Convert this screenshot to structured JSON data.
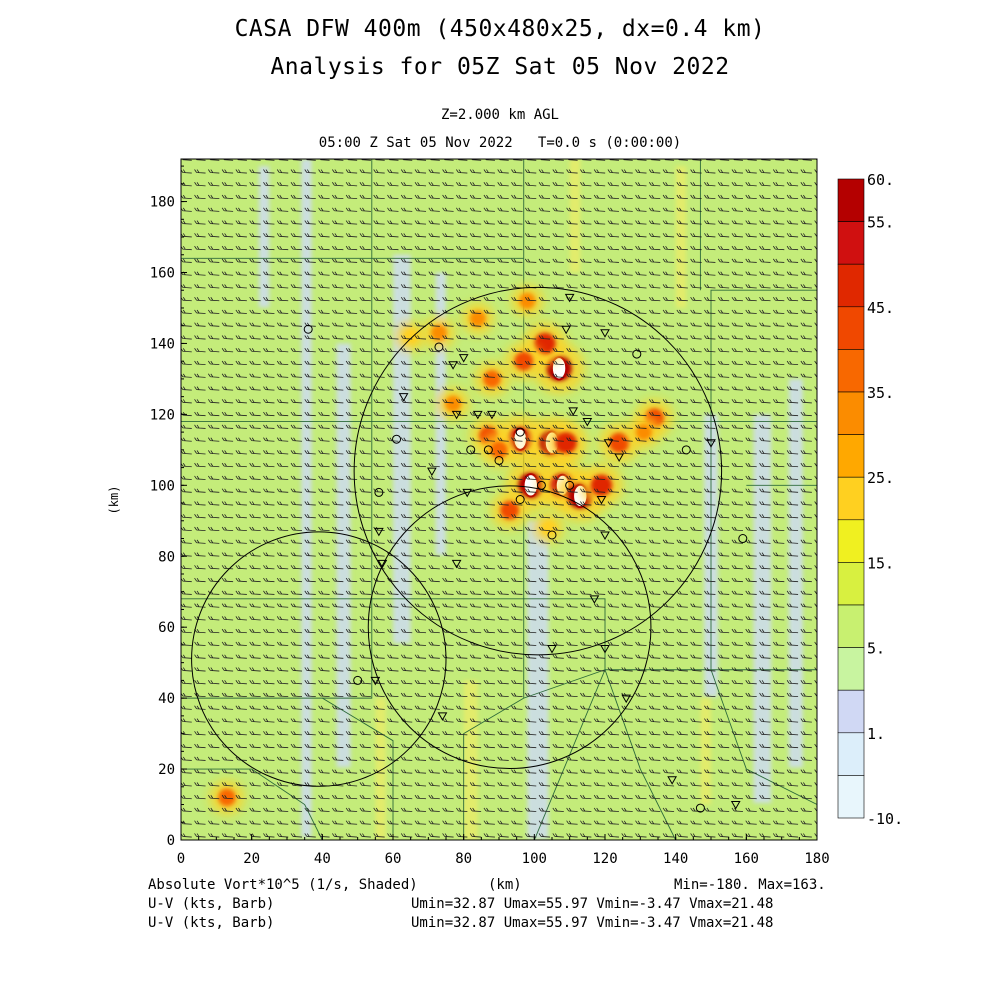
{
  "header": {
    "title_line1": "CASA DFW 400m (450x480x25, dx=0.4 km)",
    "title_line2": "Analysis for 05Z Sat 05 Nov 2022",
    "level": "Z=2.000 km AGL",
    "time": "05:00 Z Sat 05 Nov 2022   T=0.0 s (0:00:00)"
  },
  "footer": {
    "field1": "Absolute Vort*10^5 (1/s, Shaded)",
    "xunit": "(km)",
    "minmax": "Min=-180. Max=163.",
    "field2": "U-V (kts, Barb)",
    "stats2": "Umin=32.87 Umax=55.97 Vmin=-3.47 Vmax=21.48",
    "field3": "U-V (kts, Barb)",
    "stats3": "Umin=32.87 Umax=55.97 Vmin=-3.47 Vmax=21.48"
  },
  "chart_data": {
    "type": "heatmap",
    "xlabel": "(km)",
    "ylabel": "(km)",
    "xlim": [
      0,
      180
    ],
    "ylim": [
      0,
      192
    ],
    "xticks": [
      "0",
      "20",
      "40",
      "60",
      "80",
      "100",
      "120",
      "140",
      "160",
      "180"
    ],
    "yticks": [
      "0",
      "20",
      "40",
      "60",
      "80",
      "100",
      "120",
      "140",
      "160",
      "180"
    ],
    "colorbar": {
      "labels": [
        "60.",
        "55.",
        "45.",
        "35.",
        "25.",
        "15.",
        "5.",
        "1.",
        "-10."
      ],
      "colors": [
        "#b40000",
        "#d01010",
        "#e02800",
        "#f04800",
        "#f86800",
        "#fb8c00",
        "#ffa800",
        "#ffd020",
        "#f0f020",
        "#d8f040",
        "#c8f070",
        "#c8f4a0",
        "#d0d8f4",
        "#dceefa",
        "#e8f6fc"
      ]
    },
    "background_colors": {
      "green": "#c4ec7a",
      "blue": "#ccdcf0",
      "yellow": "#e6ec6a"
    },
    "radar_ranges": [
      {
        "cx": 101,
        "cy": 104,
        "r": 52
      },
      {
        "cx": 39,
        "cy": 51,
        "r": 36
      },
      {
        "cx": 93,
        "cy": 60,
        "r": 40
      }
    ],
    "vorticity_cores": [
      {
        "x": 107,
        "y": 133,
        "v": 60
      },
      {
        "x": 103,
        "y": 140,
        "v": 45
      },
      {
        "x": 97,
        "y": 135,
        "v": 35
      },
      {
        "x": 88,
        "y": 130,
        "v": 30
      },
      {
        "x": 96,
        "y": 113,
        "v": 55
      },
      {
        "x": 105,
        "y": 112,
        "v": 60
      },
      {
        "x": 109,
        "y": 112,
        "v": 45
      },
      {
        "x": 99,
        "y": 100,
        "v": 60
      },
      {
        "x": 108,
        "y": 100,
        "v": 55
      },
      {
        "x": 113,
        "y": 97,
        "v": 60
      },
      {
        "x": 119,
        "y": 100,
        "v": 45
      },
      {
        "x": 124,
        "y": 112,
        "v": 40
      },
      {
        "x": 134,
        "y": 119,
        "v": 35
      },
      {
        "x": 87,
        "y": 114,
        "v": 35
      },
      {
        "x": 73,
        "y": 143,
        "v": 25
      },
      {
        "x": 84,
        "y": 147,
        "v": 25
      },
      {
        "x": 65,
        "y": 142,
        "v": 20
      },
      {
        "x": 98,
        "y": 152,
        "v": 25
      },
      {
        "x": 90,
        "y": 110,
        "v": 30
      },
      {
        "x": 93,
        "y": 93,
        "v": 35
      },
      {
        "x": 13,
        "y": 12,
        "v": 30
      },
      {
        "x": 104,
        "y": 88,
        "v": 20
      },
      {
        "x": 77,
        "y": 123,
        "v": 25
      },
      {
        "x": 131,
        "y": 115,
        "v": 25
      }
    ],
    "wind_barbs": {
      "u_range": [
        32.87,
        55.97
      ],
      "v_range": [
        -3.47,
        21.48
      ],
      "units": "kts"
    }
  }
}
